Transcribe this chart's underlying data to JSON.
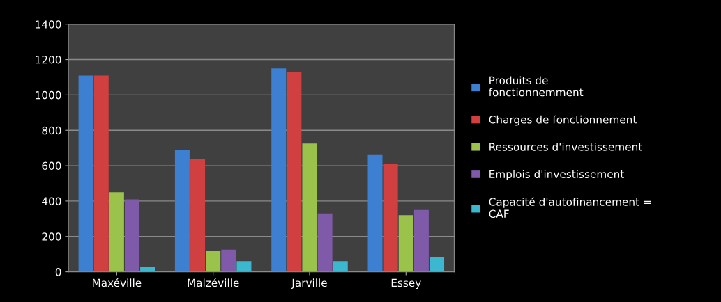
{
  "chart_data": {
    "type": "bar",
    "categories": [
      "Maxéville",
      "Malzéville",
      "Jarville",
      "Essey"
    ],
    "series": [
      {
        "name": "Produits de\nfonctionnemment",
        "color": "#3d7fd0",
        "values": [
          1110,
          690,
          1150,
          660
        ]
      },
      {
        "name": "Charges de fonctionnement",
        "color": "#d04040",
        "values": [
          1110,
          640,
          1130,
          610
        ]
      },
      {
        "name": "Ressources d'investissement",
        "color": "#9bc24a",
        "values": [
          450,
          120,
          725,
          320
        ]
      },
      {
        "name": "Emplois d'investissement",
        "color": "#7f5aa8",
        "values": [
          410,
          125,
          330,
          350
        ]
      },
      {
        "name": "Capacité d'autofinancement =\nCAF",
        "color": "#3bb8d0",
        "values": [
          30,
          60,
          60,
          85
        ]
      }
    ],
    "ylim": [
      0,
      1400
    ],
    "yticks": [
      0,
      200,
      400,
      600,
      800,
      1000,
      1200,
      1400
    ],
    "grid": "y",
    "legend": "right"
  }
}
